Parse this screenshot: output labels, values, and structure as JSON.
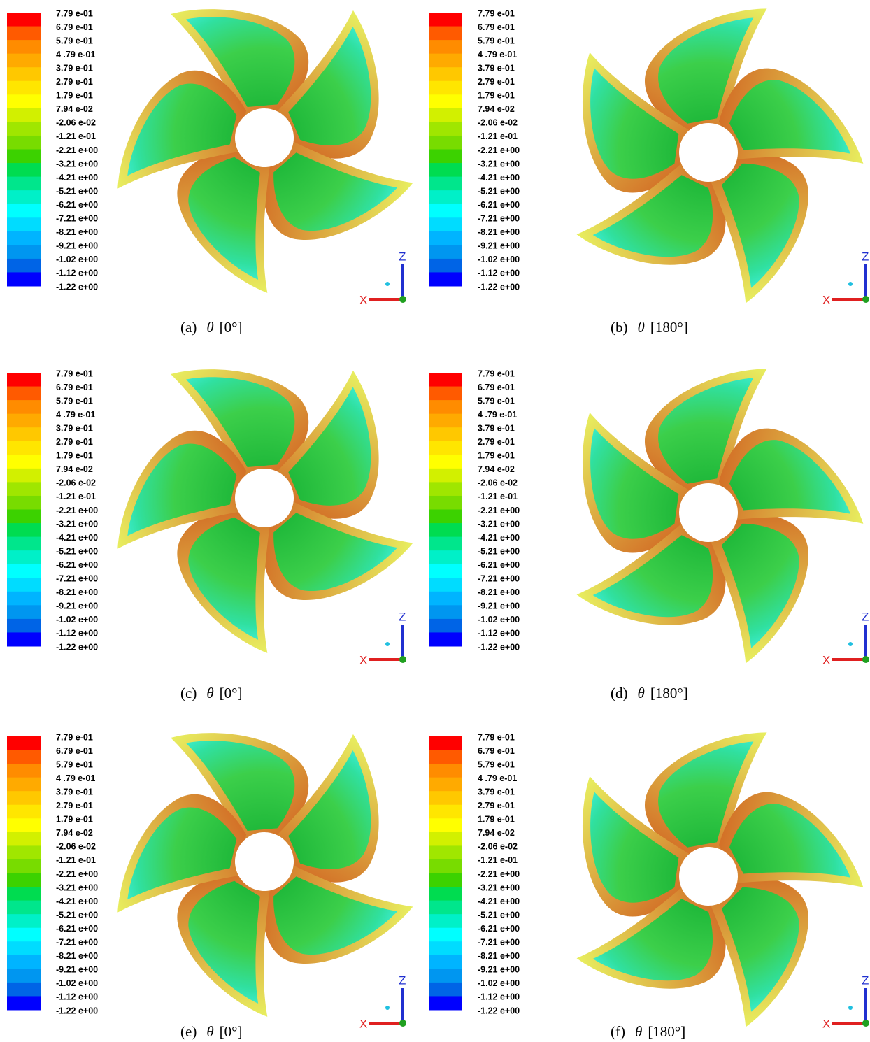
{
  "legend_labels": [
    "7.79 e-01",
    "6.79 e-01",
    "5.79 e-01",
    "4 .79 e-01",
    "3.79 e-01",
    "2.79 e-01",
    "1.79 e-01",
    "7.94 e-02",
    "-2.06 e-02",
    "-1.21 e-01",
    "-2.21 e+00",
    "-3.21 e+00",
    "-4.21 e+00",
    "-5.21 e+00",
    "-6.21 e+00",
    "-7.21 e+00",
    "-8.21 e+00",
    "-9.21 e+00",
    "-1.02 e+00",
    "-1.12 e+00",
    "-1.22 e+00"
  ],
  "axes": {
    "z": "Z",
    "x": "X"
  },
  "panels": [
    {
      "label": "(a)",
      "symbol": "θ",
      "angle": "[0°]"
    },
    {
      "label": "(b)",
      "symbol": "θ",
      "angle": "[180°]"
    },
    {
      "label": "(c)",
      "symbol": "θ",
      "angle": "[0°]"
    },
    {
      "label": "(d)",
      "symbol": "θ",
      "angle": "[180°]"
    },
    {
      "label": "(e)",
      "symbol": "θ",
      "angle": "[0°]"
    },
    {
      "label": "(f)",
      "symbol": "θ",
      "angle": "[180°]"
    }
  ]
}
